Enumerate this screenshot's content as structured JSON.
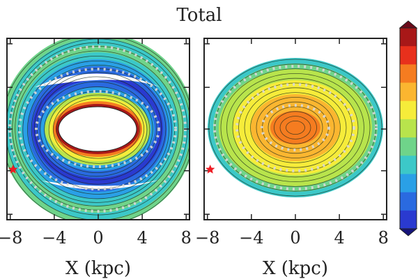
{
  "chart_data": {
    "type": "heatmap",
    "title": "Total",
    "colormap": [
      "#6a0a1a",
      "#a81818",
      "#e8301c",
      "#f57c20",
      "#fbb630",
      "#f6ec3a",
      "#b8e44c",
      "#6fd48a",
      "#3cc8c8",
      "#2aa0e6",
      "#2a6ae0",
      "#2a3ad0",
      "#16147a"
    ],
    "colorbar": {
      "orientation": "vertical",
      "ticks_visible": false
    },
    "marker": {
      "symbol": "star",
      "color": "#ee1c24",
      "x": -8,
      "y": 0
    },
    "panels": [
      {
        "name": "left",
        "xlabel": "X (kpc)",
        "xlim": [
          -8.3,
          8.3
        ],
        "xticks": [
          "−8",
          "−4",
          "0",
          "4",
          "8"
        ],
        "tick_values": [
          -8,
          -4,
          0,
          4,
          8
        ],
        "structure": "ring with central hole"
      },
      {
        "name": "right",
        "xlabel": "X (kpc)",
        "xlim": [
          -8.3,
          8.3
        ],
        "xticks": [
          "−8",
          "−4",
          "0",
          "4",
          "8"
        ],
        "tick_values": [
          -8,
          -4,
          0,
          4,
          8
        ],
        "structure": "filled disk with central peak"
      }
    ]
  }
}
